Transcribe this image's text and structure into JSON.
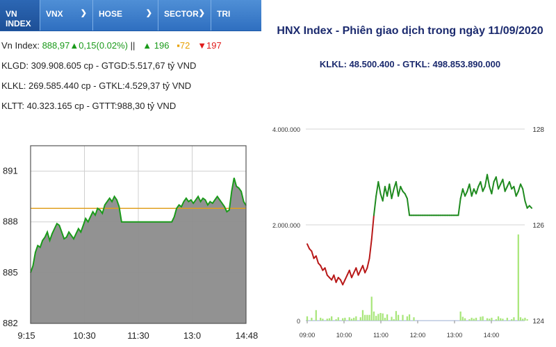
{
  "tabs": [
    {
      "label": "VN INDEX",
      "has_dropdown": false,
      "active": true
    },
    {
      "label": "VNX",
      "has_dropdown": true,
      "active": false
    },
    {
      "label": "HOSE",
      "has_dropdown": true,
      "active": false
    },
    {
      "label": "SECTOR",
      "has_dropdown": true,
      "active": false
    },
    {
      "label": "TRI",
      "has_dropdown": false,
      "active": false
    }
  ],
  "stats": {
    "index_label": "Vn Index:",
    "index_value": "888,97",
    "change": "▲0,15(0.02%)",
    "separator": "||",
    "advances": "▲ 196",
    "unchanged": "▪72",
    "declines": "▼197",
    "row2": "KLGD: 309.908.605 cp - GTGD:5.517,67 tỷ VND",
    "row3": "KLKL: 269.585.440 cp - GTKL:4.529,37 tỷ VND",
    "row4": "KLTT: 40.323.165 cp - GTTT:988,30 tỷ VND"
  },
  "chart_data": [
    {
      "type": "area",
      "title": "",
      "x_tick_labels": [
        "9:15",
        "10:30",
        "11:30",
        "13:0",
        "14:48"
      ],
      "y_tick_labels": [
        "882",
        "885",
        "888",
        "891"
      ],
      "ylim": [
        882,
        892.5
      ],
      "reference_value": 888.8,
      "grid": true,
      "series": [
        {
          "values": [
            885.0,
            885.4,
            886.2,
            886.6,
            886.5,
            886.9,
            887.1,
            887.4,
            886.9,
            887.3,
            887.6,
            887.9,
            887.8,
            887.4,
            887.0,
            887.1,
            887.4,
            887.2,
            887.0,
            887.3,
            887.6,
            887.4,
            887.8,
            888.2,
            888.0,
            888.3,
            888.6,
            888.4,
            888.8,
            888.7,
            888.5,
            889.0,
            889.2,
            889.4,
            889.2,
            889.5,
            889.3,
            888.9,
            888.0,
            888.0,
            888.0,
            888.0,
            888.0,
            888.0,
            888.0,
            888.0,
            888.0,
            888.0,
            888.0,
            888.0,
            888.0,
            888.0,
            888.0,
            888.0,
            888.0,
            888.0,
            888.0,
            888.0,
            888.0,
            888.0,
            888.3,
            888.8,
            889.0,
            888.9,
            889.2,
            889.4,
            889.2,
            889.3,
            889.1,
            889.3,
            889.5,
            889.2,
            889.4,
            889.3,
            889.0,
            889.2,
            889.1,
            889.3,
            889.5,
            889.3,
            889.1,
            888.9,
            888.6,
            888.7,
            889.8,
            890.6,
            890.1,
            890.0,
            889.8,
            889.2,
            888.97
          ]
        }
      ]
    },
    {
      "type": "line",
      "title": "HNX Index - Phiên giao dịch trong ngày 11/09/2020",
      "subtitle": "KLKL: 48.500.400 - GTKL: 498.853.890.000",
      "x_tick_labels": [
        "09:00",
        "10:00",
        "11:00",
        "12:00",
        "13:00",
        "14:00"
      ],
      "y_left_tick_labels": [
        "0",
        "2.000.000",
        "4.000.000"
      ],
      "y_right_tick_labels": [
        "124",
        "126",
        "128"
      ],
      "y_left_range": [
        0,
        4000000
      ],
      "y_right_range": [
        124,
        128
      ],
      "reference_value": 126.0,
      "grid": true,
      "colors": {
        "up": "#1e8a1e",
        "down": "#b81818",
        "volume": "#a8e67a"
      },
      "series": [
        {
          "name": "index",
          "values": [
            125.6,
            125.5,
            125.45,
            125.3,
            125.35,
            125.2,
            125.15,
            125.05,
            125.1,
            124.95,
            124.9,
            124.85,
            124.95,
            124.8,
            124.9,
            124.85,
            124.75,
            124.85,
            124.95,
            125.05,
            124.9,
            125.0,
            125.1,
            124.95,
            125.05,
            125.15,
            125.0,
            125.1,
            125.3,
            125.7,
            126.2,
            126.6,
            126.9,
            126.65,
            126.5,
            126.8,
            126.6,
            126.85,
            126.55,
            126.75,
            126.9,
            126.6,
            126.8,
            126.7,
            126.65,
            126.55,
            126.2,
            126.2,
            126.2,
            126.2,
            126.2,
            126.2,
            126.2,
            126.2,
            126.2,
            126.2,
            126.2,
            126.2,
            126.2,
            126.2,
            126.2,
            126.2,
            126.2,
            126.2,
            126.2,
            126.2,
            126.2,
            126.2,
            126.2,
            126.55,
            126.75,
            126.6,
            126.7,
            126.85,
            126.6,
            126.75,
            126.65,
            126.8,
            126.9,
            126.7,
            126.8,
            127.05,
            126.8,
            126.65,
            126.9,
            127.0,
            126.75,
            126.85,
            126.95,
            126.7,
            126.8,
            126.9,
            126.75,
            126.8,
            126.6,
            126.7,
            126.85,
            126.75,
            126.5,
            126.35,
            126.4,
            126.35
          ]
        },
        {
          "name": "volume",
          "values": [
            90000,
            0,
            60000,
            0,
            220000,
            0,
            60000,
            40000,
            0,
            40000,
            50000,
            90000,
            0,
            30000,
            70000,
            0,
            50000,
            60000,
            0,
            70000,
            40000,
            60000,
            90000,
            0,
            70000,
            220000,
            120000,
            120000,
            120000,
            500000,
            190000,
            100000,
            140000,
            160000,
            150000,
            60000,
            130000,
            0,
            80000,
            30000,
            200000,
            120000,
            0,
            120000,
            0,
            90000,
            130000,
            0,
            70000,
            0,
            0,
            0,
            0,
            0,
            0,
            0,
            0,
            0,
            0,
            0,
            0,
            0,
            0,
            0,
            0,
            0,
            0,
            0,
            0,
            190000,
            80000,
            50000,
            0,
            30000,
            60000,
            40000,
            60000,
            0,
            80000,
            90000,
            0,
            50000,
            40000,
            60000,
            0,
            30000,
            90000,
            50000,
            40000,
            0,
            60000,
            0,
            30000,
            70000,
            0,
            1800000,
            70000,
            40000,
            60000,
            30000,
            0,
            0
          ]
        }
      ]
    }
  ]
}
